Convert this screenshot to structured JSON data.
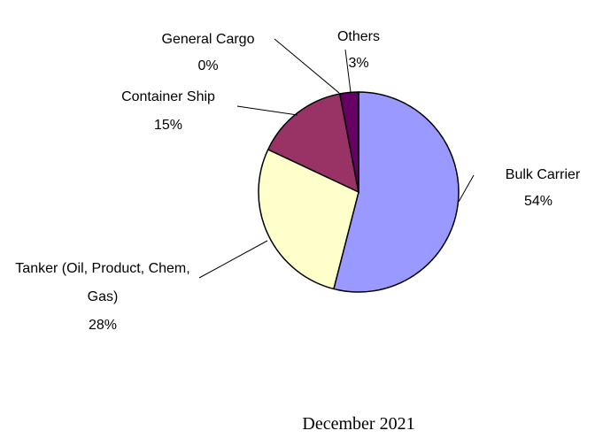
{
  "chart_data": {
    "type": "pie",
    "title": "December 2021",
    "categories": [
      "Bulk Carrier",
      "Tanker (Oil, Product, Chem, Gas)",
      "Container Ship",
      "General Cargo",
      "Others"
    ],
    "values": [
      54,
      28,
      15,
      0,
      3
    ],
    "value_labels": [
      "54%",
      "28%",
      "15%",
      "0%",
      "3%"
    ],
    "colors": [
      "#9999ff",
      "#ffffcc",
      "#993366",
      "#1a1a1a",
      "#660066"
    ]
  }
}
